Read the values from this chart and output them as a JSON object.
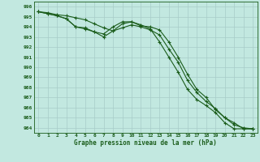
{
  "xlabel": "Graphe pression niveau de la mer (hPa)",
  "x": [
    0,
    1,
    2,
    3,
    4,
    5,
    6,
    7,
    8,
    9,
    10,
    11,
    12,
    13,
    14,
    15,
    16,
    17,
    18,
    19,
    20,
    21,
    22,
    23
  ],
  "line1": [
    995.5,
    995.3,
    995.1,
    994.8,
    994.0,
    993.8,
    993.5,
    993.3,
    994.0,
    994.5,
    994.5,
    994.2,
    993.8,
    992.5,
    991.0,
    989.5,
    987.8,
    986.8,
    986.2,
    985.5,
    984.5,
    983.9,
    983.9,
    983.9
  ],
  "line2": [
    995.5,
    995.3,
    995.1,
    994.8,
    994.0,
    993.9,
    993.5,
    993.0,
    993.6,
    994.3,
    994.5,
    994.1,
    994.0,
    993.7,
    992.5,
    991.0,
    989.3,
    987.8,
    987.0,
    985.8,
    985.0,
    984.5,
    983.9,
    983.9
  ],
  "line3": [
    995.5,
    995.4,
    995.2,
    995.1,
    994.9,
    994.7,
    994.3,
    993.9,
    993.6,
    993.9,
    994.2,
    994.0,
    993.7,
    993.2,
    991.8,
    990.5,
    988.7,
    987.5,
    986.6,
    985.9,
    985.0,
    984.3,
    984.0,
    983.9
  ],
  "ylim_min": 983.5,
  "ylim_max": 996.5,
  "yticks": [
    984,
    985,
    986,
    987,
    988,
    989,
    990,
    991,
    992,
    993,
    994,
    995,
    996
  ],
  "line_color": "#1a5c1a",
  "bg_color": "#c2e8e0",
  "grid_color": "#a8ccc8",
  "marker": "+",
  "markersize": 3,
  "linewidth": 0.8
}
